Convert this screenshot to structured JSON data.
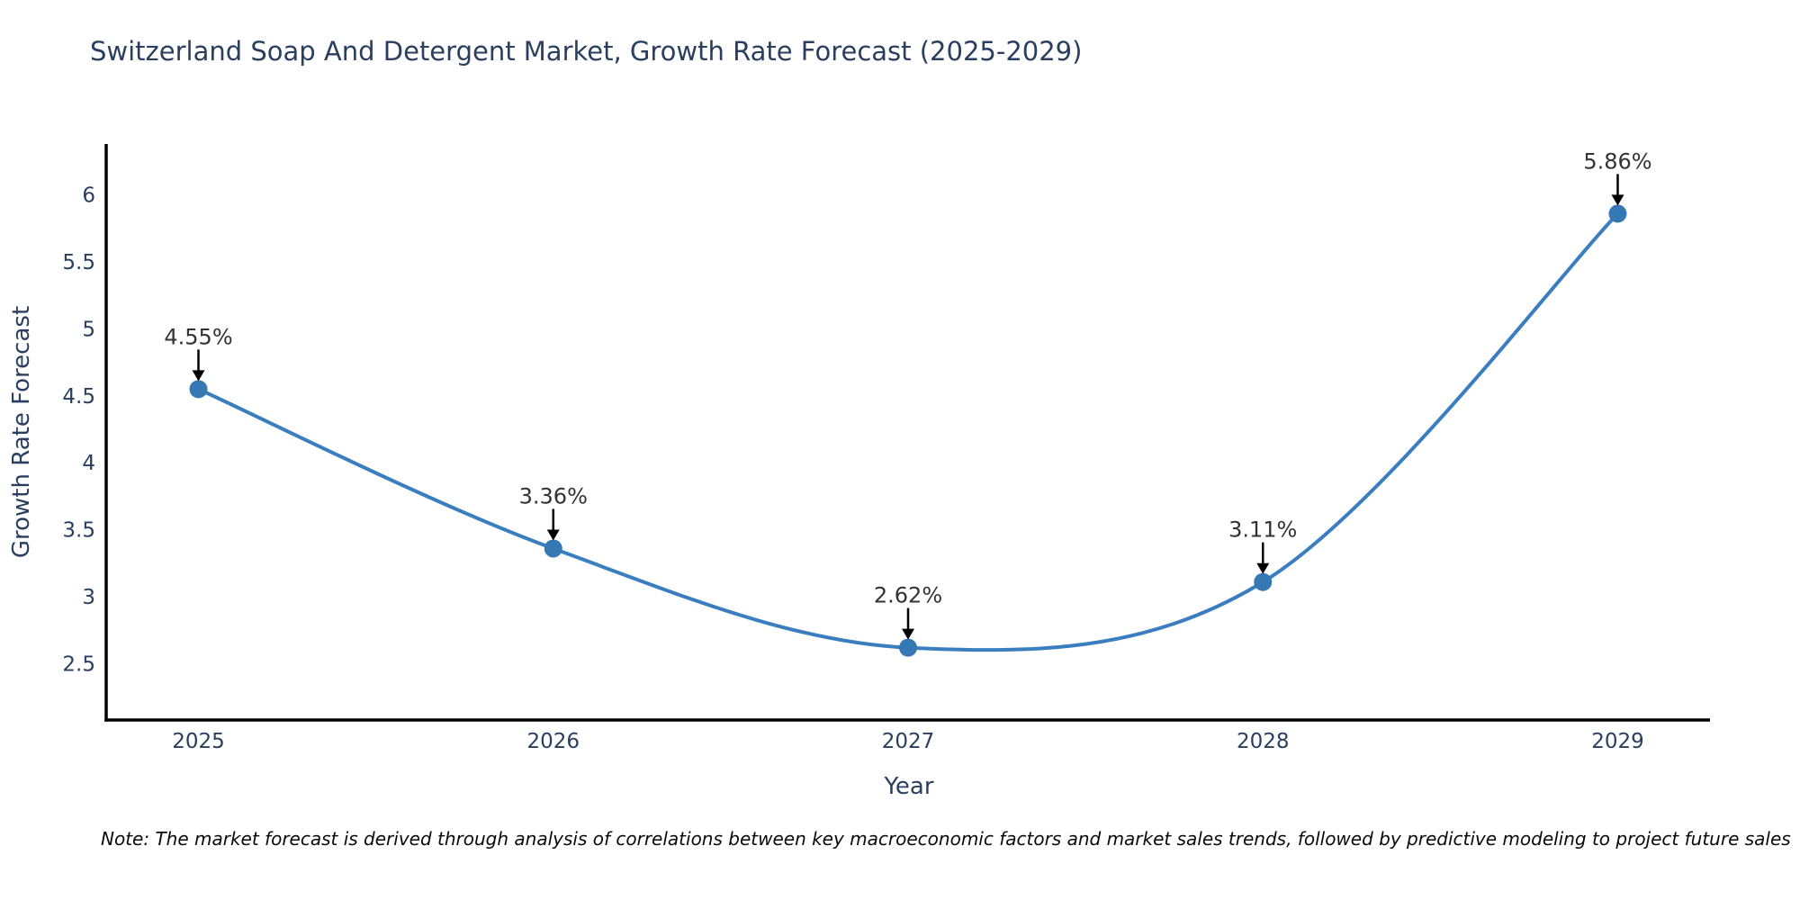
{
  "title": "Switzerland Soap And Detergent Market, Growth Rate Forecast (2025-2029)",
  "note": "Note: The market forecast is derived through analysis of correlations between key macroeconomic factors and market sales trends, followed by predictive modeling to project future sales",
  "chart_data": {
    "type": "line",
    "line_shape": "spline",
    "title": "Switzerland Soap And Detergent Market, Growth Rate Forecast (2025-2029)",
    "xlabel": "Year",
    "ylabel": "Growth Rate Forecast",
    "x": [
      2025,
      2026,
      2027,
      2028,
      2029
    ],
    "values": [
      4.55,
      3.36,
      2.62,
      3.11,
      5.86
    ],
    "point_labels": [
      "4.55%",
      "3.36%",
      "2.62%",
      "3.11%",
      "5.86%"
    ],
    "xticks": [
      "2025",
      "2026",
      "2027",
      "2028",
      "2029"
    ],
    "yticks": [
      2.5,
      3,
      3.5,
      4,
      4.5,
      5,
      5.5,
      6
    ],
    "xlim": [
      2024.74,
      2029.26
    ],
    "ylim": [
      2.08,
      6.38
    ],
    "grid": false,
    "legend": false,
    "colors": {
      "line": "#3b7ec0",
      "marker": "#3578b4",
      "axis": "#000000",
      "arrow": "#000000",
      "annotation_text": "#333333",
      "tick_text": "#2a3f5f",
      "title_text": "#2a3f5f"
    }
  }
}
